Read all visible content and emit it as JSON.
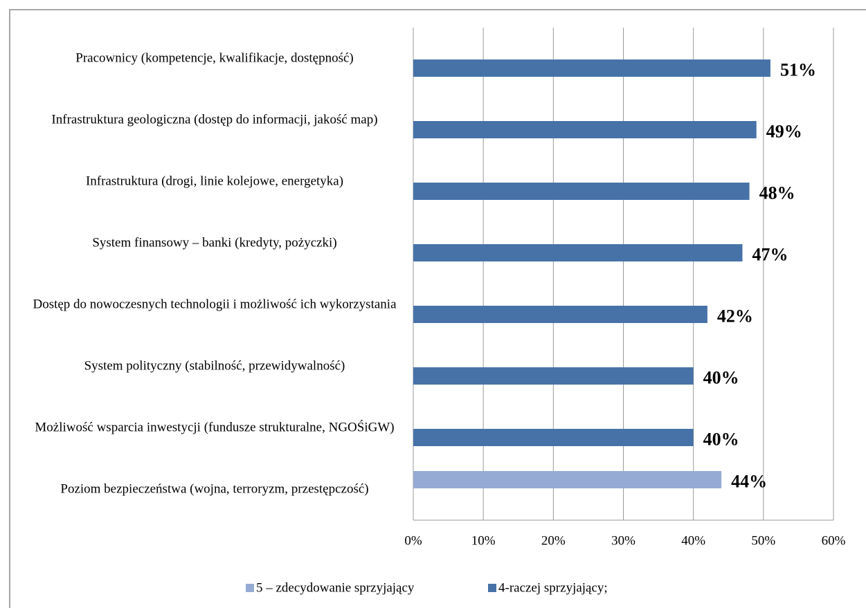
{
  "chart_data": {
    "type": "bar",
    "orientation": "horizontal",
    "categories": [
      "Pracownicy (kompetencje, kwalifikacje, dostępność)",
      "Infrastruktura geologiczna (dostęp do informacji, jakość map)",
      "Infrastruktura (drogi, linie kolejowe, energetyka)",
      "System finansowy – banki (kredyty, pożyczki)",
      "Dostęp do nowoczesnych technologii i możliwość ich wykorzystania",
      "System polityczny (stabilność, przewidywalność)",
      "Możliwość wsparcia inwestycji (fundusze strukturalne, NGOŚiGW)",
      "Poziom bezpieczeństwa (wojna, terroryzm, przestępczość)"
    ],
    "series": [
      {
        "name": "5 – zdecydowanie sprzyjający",
        "color": "#95abd3",
        "values": [
          null,
          null,
          null,
          null,
          null,
          null,
          null,
          44
        ],
        "value_labels": [
          null,
          null,
          null,
          null,
          null,
          null,
          null,
          "44%"
        ]
      },
      {
        "name": "4-raczej sprzyjający;",
        "color": "#4672a8",
        "values": [
          51,
          49,
          48,
          47,
          42,
          40,
          40,
          null
        ],
        "value_labels": [
          "51%",
          "49%",
          "48%",
          "47%",
          "42%",
          "40%",
          "40%",
          null
        ]
      }
    ],
    "xlim": [
      0,
      60
    ],
    "xticks": [
      {
        "value": 0,
        "label": "0%"
      },
      {
        "value": 10,
        "label": "10%"
      },
      {
        "value": 20,
        "label": "20%"
      },
      {
        "value": 30,
        "label": "30%"
      },
      {
        "value": 40,
        "label": "40%"
      },
      {
        "value": 50,
        "label": "50%"
      },
      {
        "value": 60,
        "label": "60%"
      }
    ],
    "grid": true,
    "legend": "bottom"
  }
}
